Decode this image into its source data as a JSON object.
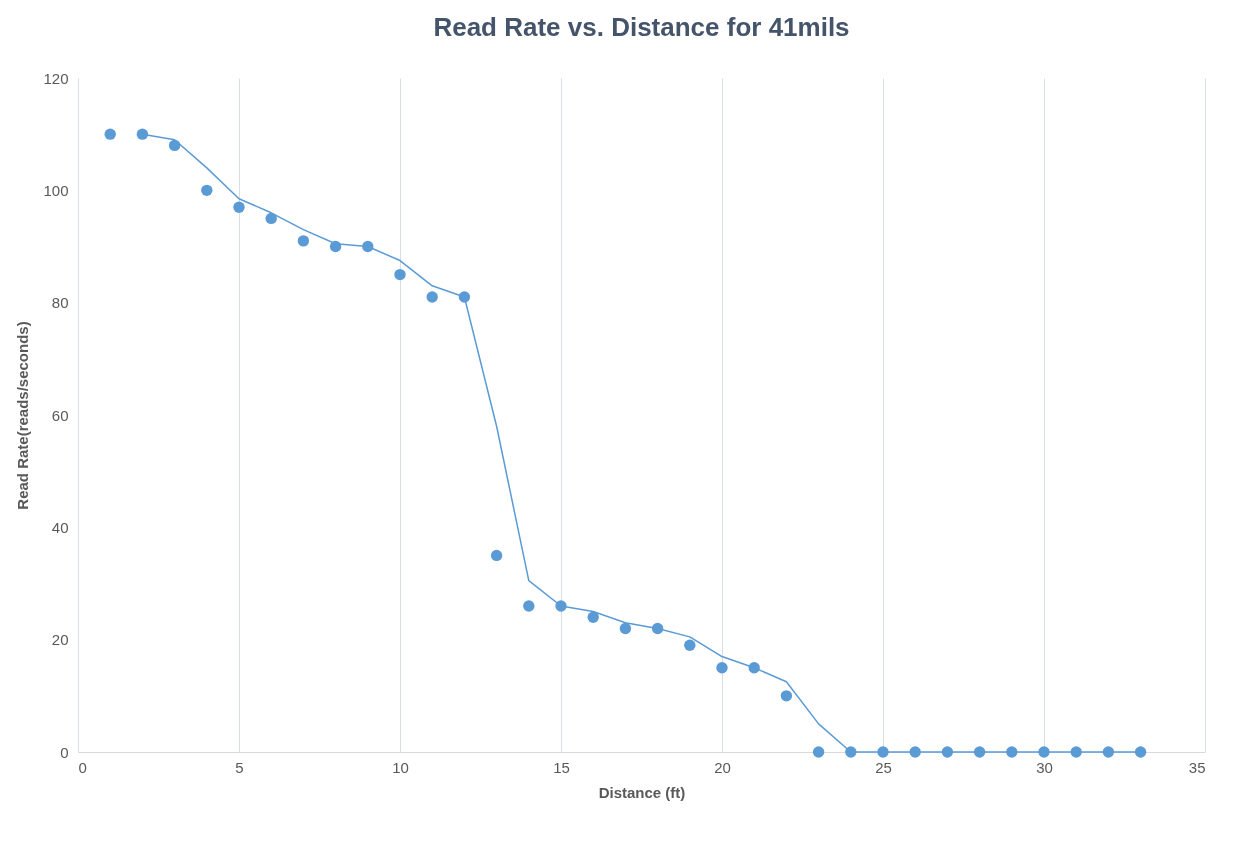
{
  "chart_data": {
    "type": "scatter",
    "title": "Read Rate vs. Distance for 41mils",
    "xlabel": "Distance (ft)",
    "ylabel": "Read Rate(reads/seconds)",
    "xlim": [
      0,
      35
    ],
    "xticks": [
      0,
      5,
      10,
      15,
      20,
      25,
      30,
      35
    ],
    "ylim": [
      0,
      120
    ],
    "yticks": [
      0,
      20,
      40,
      60,
      80,
      100,
      120
    ],
    "grid": "x",
    "series": [
      {
        "color": "#5b9bd5",
        "marker": "circle",
        "x": [
          1,
          2,
          3,
          4,
          5,
          6,
          7,
          8,
          9,
          10,
          11,
          12,
          13,
          14,
          15,
          16,
          17,
          18,
          19,
          20,
          21,
          22,
          23,
          24,
          25,
          26,
          27,
          28,
          29,
          30,
          31,
          32,
          33
        ],
        "values": [
          110,
          110,
          108,
          100,
          97,
          95,
          91,
          90,
          90,
          85,
          81,
          81,
          35,
          26,
          26,
          24,
          22,
          22,
          19,
          15,
          15,
          10,
          0,
          0,
          0,
          0,
          0,
          0,
          0,
          0,
          0,
          0,
          0
        ]
      },
      {
        "type": "line",
        "color": "#5b9bd5",
        "line_style": "solid",
        "marker": "none",
        "x": [
          2,
          3,
          4,
          5,
          6,
          7,
          8,
          9,
          10,
          11,
          12,
          13,
          14,
          15,
          16,
          17,
          18,
          19,
          20,
          21,
          22,
          23,
          24,
          25,
          26,
          27,
          28,
          29,
          30,
          31,
          32,
          33
        ],
        "values": [
          110,
          109,
          104,
          98.5,
          96,
          93,
          90.5,
          90,
          87.5,
          83,
          81,
          58,
          30.5,
          26,
          25,
          23,
          22,
          20.5,
          17,
          15,
          12.5,
          5,
          0,
          0,
          0,
          0,
          0,
          0,
          0,
          0,
          0,
          0
        ]
      }
    ]
  }
}
